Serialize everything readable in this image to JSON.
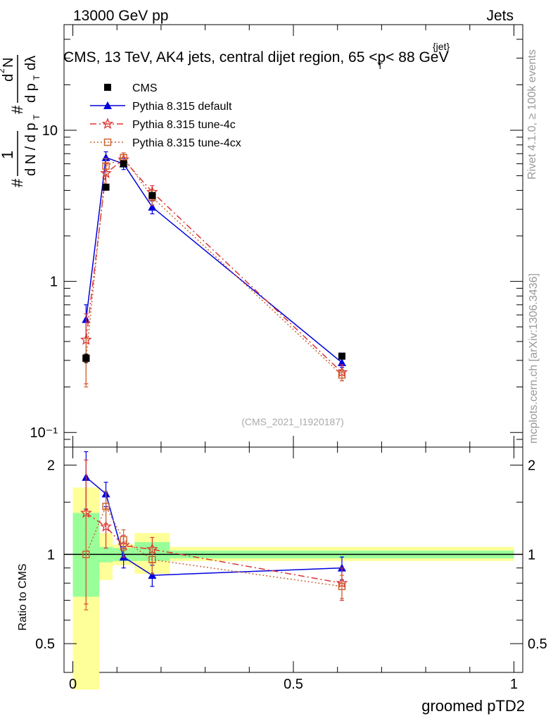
{
  "header": {
    "energy_label": "13000 GeV pp",
    "category_label": "Jets",
    "title_prefix": "CMS, 13 TeV, AK4 jets, central dijet region, 65 <",
    "title_p": "p",
    "title_sub": "T",
    "title_sup": "{jet}",
    "title_suffix": "< 88 GeV",
    "rivet_label": "Rivet 4.1.0, ≥ 100k events",
    "mcplots_label": "mcplots.cern.ch [arXiv:1306.3436]",
    "analysis_id": "(CMS_2021_I1920187)"
  },
  "colors": {
    "data": "#000000",
    "default": "#0000dd",
    "tune4c": "#dd3333",
    "tune4cx": "#cc6633",
    "band_inner": "#99ff99",
    "band_outer": "#ffff99"
  },
  "chart_data": {
    "type": "scatter",
    "xlabel": "groomed pTD2",
    "ylabel_main": "1/dN/dp_T  d²N/dp_T dλ",
    "ylabel_ratio": "Ratio to CMS",
    "xlim": [
      -0.02,
      1.02
    ],
    "ylim_main": [
      0.08,
      50
    ],
    "ylim_ratio": [
      0.4,
      2.3
    ],
    "x_ticks": [
      0,
      0.5,
      1
    ],
    "x_tick_labels": [
      "0",
      "0.5",
      "1"
    ],
    "y_ticks_main": [
      10,
      1,
      0.1
    ],
    "y_tick_labels_main": [
      "10",
      "1",
      "10⁻¹"
    ],
    "y_ticks_ratio": [
      2,
      1,
      0.5
    ],
    "y_tick_labels_ratio": [
      "2",
      "1",
      "0.5"
    ],
    "bins": [
      {
        "lo": 0.0,
        "hi": 0.06
      },
      {
        "lo": 0.06,
        "hi": 0.09
      },
      {
        "lo": 0.09,
        "hi": 0.14
      },
      {
        "lo": 0.14,
        "hi": 0.22
      },
      {
        "lo": 0.22,
        "hi": 1.0
      }
    ],
    "band_inner": [
      {
        "lo": 0.72,
        "hi": 1.38
      },
      {
        "lo": 0.94,
        "hi": 1.06
      },
      {
        "lo": 0.95,
        "hi": 1.05
      },
      {
        "lo": 0.95,
        "hi": 1.1
      },
      {
        "lo": 0.97,
        "hi": 1.03
      }
    ],
    "band_outer": [
      {
        "lo": 0.35,
        "hi": 1.68
      },
      {
        "lo": 0.82,
        "hi": 1.18
      },
      {
        "lo": 0.92,
        "hi": 1.08
      },
      {
        "lo": 0.86,
        "hi": 1.18
      },
      {
        "lo": 0.95,
        "hi": 1.06
      }
    ],
    "series": [
      {
        "name": "CMS",
        "key": "data",
        "marker": "square",
        "linestyle": "none",
        "x": [
          0.03,
          0.075,
          0.115,
          0.18,
          0.61
        ],
        "y": [
          0.31,
          4.2,
          6.0,
          3.7,
          0.32
        ],
        "yerr": [
          0.02,
          0.1,
          0.1,
          0.08,
          0.01
        ],
        "ratio": [
          1.0,
          1.0,
          1.0,
          1.0,
          1.0
        ]
      },
      {
        "name": "Pythia 8.315 default",
        "key": "default",
        "marker": "triangle",
        "linestyle": "solid",
        "x": [
          0.03,
          0.075,
          0.115,
          0.18,
          0.61
        ],
        "y": [
          0.56,
          6.6,
          6.0,
          3.1,
          0.29
        ],
        "yerr": [
          0.14,
          0.6,
          0.5,
          0.3,
          0.02
        ],
        "ratio": [
          1.82,
          1.6,
          0.98,
          0.85,
          0.9
        ],
        "ratio_err": [
          0.4,
          0.15,
          0.08,
          0.07,
          0.08
        ]
      },
      {
        "name": "Pythia 8.315 tune-4c",
        "key": "tune4c",
        "marker": "star",
        "linestyle": "dashdot",
        "x": [
          0.03,
          0.075,
          0.115,
          0.18,
          0.61
        ],
        "y": [
          0.41,
          5.2,
          6.4,
          3.9,
          0.25
        ],
        "yerr": [
          0.2,
          0.8,
          0.5,
          0.4,
          0.03
        ],
        "ratio": [
          1.38,
          1.24,
          1.07,
          1.04,
          0.8
        ],
        "ratio_err": [
          0.7,
          0.19,
          0.09,
          0.1,
          0.1
        ]
      },
      {
        "name": "Pythia 8.315 tune-4cx",
        "key": "tune4cx",
        "marker": "opensquare",
        "linestyle": "dotted",
        "x": [
          0.03,
          0.075,
          0.115,
          0.18,
          0.61
        ],
        "y": [
          0.31,
          5.8,
          6.6,
          3.6,
          0.24
        ],
        "yerr": [
          0.11,
          0.7,
          0.5,
          0.4,
          0.02
        ],
        "ratio": [
          1.0,
          1.45,
          1.12,
          0.96,
          0.78
        ],
        "ratio_err": [
          0.35,
          0.18,
          0.09,
          0.1,
          0.07
        ]
      }
    ]
  }
}
